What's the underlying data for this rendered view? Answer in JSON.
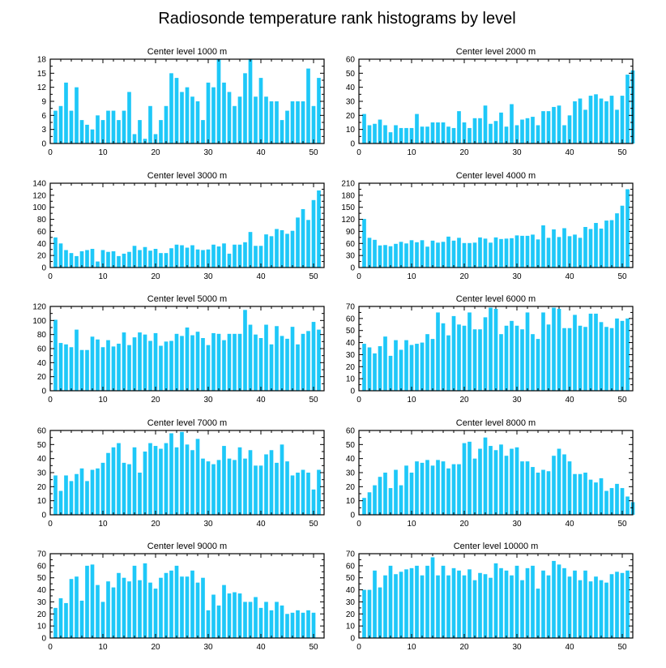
{
  "title": "Radiosonde temperature rank histograms by level",
  "colors": {
    "bar": "#1ec8f8",
    "frame": "#000000"
  },
  "chart_data": [
    {
      "type": "bar",
      "title": "Center level 1000 m",
      "xlim": [
        0,
        52
      ],
      "ylim": [
        0,
        18
      ],
      "xticks": [
        0,
        10,
        20,
        30,
        40,
        50
      ],
      "yticks": [
        0,
        3,
        6,
        9,
        12,
        15,
        18
      ],
      "values": [
        7,
        8,
        13,
        7,
        12,
        5,
        4,
        3,
        6,
        5,
        7,
        7,
        5,
        7,
        11,
        2,
        5,
        1,
        8,
        2,
        5,
        8,
        15,
        14,
        11,
        12,
        10,
        9,
        5,
        13,
        12,
        18,
        13,
        11,
        8,
        10,
        15,
        18,
        10,
        14,
        10,
        9,
        9,
        5,
        7,
        9,
        9,
        9,
        16,
        8,
        14
      ]
    },
    {
      "type": "bar",
      "title": "Center level 2000 m",
      "xlim": [
        0,
        52
      ],
      "ylim": [
        0,
        60
      ],
      "xticks": [
        0,
        10,
        20,
        30,
        40,
        50
      ],
      "yticks": [
        0,
        10,
        20,
        30,
        40,
        50,
        60
      ],
      "values": [
        21,
        13,
        14,
        17,
        13,
        8,
        13,
        11,
        11,
        11,
        21,
        12,
        12,
        15,
        15,
        15,
        12,
        11,
        23,
        15,
        11,
        18,
        18,
        27,
        14,
        16,
        22,
        12,
        28,
        13,
        17,
        18,
        19,
        13,
        23,
        23,
        26,
        27,
        13,
        20,
        30,
        32,
        24,
        34,
        35,
        32,
        30,
        34,
        24,
        34,
        49,
        52
      ]
    },
    {
      "type": "bar",
      "title": "Center level 3000 m",
      "xlim": [
        0,
        52
      ],
      "ylim": [
        0,
        140
      ],
      "xticks": [
        0,
        10,
        20,
        30,
        40,
        50
      ],
      "yticks": [
        0,
        20,
        40,
        60,
        80,
        100,
        120,
        140
      ],
      "values": [
        50,
        40,
        29,
        24,
        19,
        27,
        29,
        31,
        10,
        29,
        26,
        27,
        19,
        23,
        26,
        36,
        29,
        34,
        28,
        31,
        24,
        24,
        32,
        38,
        37,
        33,
        37,
        30,
        29,
        30,
        38,
        35,
        40,
        23,
        38,
        38,
        42,
        59,
        36,
        36,
        55,
        52,
        64,
        62,
        56,
        61,
        83,
        97,
        79,
        112,
        128
      ]
    },
    {
      "type": "bar",
      "title": "Center level 4000 m",
      "xlim": [
        0,
        52
      ],
      "ylim": [
        0,
        210
      ],
      "xticks": [
        0,
        10,
        20,
        30,
        40,
        50
      ],
      "yticks": [
        0,
        30,
        60,
        90,
        120,
        150,
        180,
        210
      ],
      "values": [
        121,
        74,
        69,
        55,
        56,
        53,
        59,
        64,
        60,
        68,
        63,
        68,
        52,
        67,
        62,
        64,
        77,
        67,
        74,
        61,
        61,
        62,
        75,
        72,
        62,
        75,
        71,
        72,
        73,
        80,
        79,
        79,
        82,
        70,
        105,
        74,
        95,
        76,
        98,
        78,
        82,
        74,
        101,
        96,
        111,
        97,
        117,
        118,
        135,
        154,
        195
      ]
    },
    {
      "type": "bar",
      "title": "Center level 5000 m",
      "xlim": [
        0,
        52
      ],
      "ylim": [
        0,
        120
      ],
      "xticks": [
        0,
        10,
        20,
        30,
        40,
        50
      ],
      "yticks": [
        0,
        20,
        40,
        60,
        80,
        100,
        120
      ],
      "values": [
        101,
        68,
        66,
        62,
        87,
        58,
        58,
        77,
        73,
        62,
        72,
        63,
        67,
        83,
        65,
        76,
        83,
        80,
        71,
        82,
        64,
        70,
        71,
        81,
        78,
        90,
        79,
        84,
        75,
        65,
        82,
        81,
        72,
        81,
        81,
        81,
        115,
        94,
        80,
        75,
        94,
        66,
        92,
        78,
        74,
        91,
        66,
        81,
        85,
        98,
        87
      ]
    },
    {
      "type": "bar",
      "title": "Center level 6000 m",
      "xlim": [
        0,
        52
      ],
      "ylim": [
        0,
        70
      ],
      "xticks": [
        0,
        10,
        20,
        30,
        40,
        50
      ],
      "yticks": [
        0,
        10,
        20,
        30,
        40,
        50,
        60,
        70
      ],
      "values": [
        39,
        36,
        31,
        37,
        45,
        29,
        42,
        34,
        42,
        38,
        39,
        40,
        47,
        43,
        65,
        56,
        46,
        62,
        55,
        54,
        65,
        51,
        51,
        61,
        69,
        68,
        47,
        54,
        58,
        54,
        51,
        65,
        47,
        43,
        65,
        55,
        69,
        68,
        52,
        52,
        63,
        54,
        53,
        64,
        64,
        57,
        53,
        52,
        60,
        58,
        60
      ]
    },
    {
      "type": "bar",
      "title": "Center level 7000 m",
      "xlim": [
        0,
        52
      ],
      "ylim": [
        0,
        60
      ],
      "xticks": [
        0,
        10,
        20,
        30,
        40,
        50
      ],
      "yticks": [
        0,
        10,
        20,
        30,
        40,
        50,
        60
      ],
      "values": [
        28,
        17,
        28,
        24,
        29,
        33,
        24,
        32,
        33,
        37,
        44,
        48,
        51,
        37,
        36,
        48,
        30,
        45,
        51,
        49,
        47,
        51,
        58,
        48,
        59,
        50,
        46,
        54,
        40,
        38,
        36,
        39,
        49,
        40,
        39,
        48,
        40,
        46,
        35,
        35,
        43,
        46,
        37,
        50,
        38,
        28,
        30,
        32,
        30,
        18,
        32
      ]
    },
    {
      "type": "bar",
      "title": "Center level 8000 m",
      "xlim": [
        0,
        52
      ],
      "ylim": [
        0,
        60
      ],
      "xticks": [
        0,
        10,
        20,
        30,
        40,
        50
      ],
      "yticks": [
        0,
        10,
        20,
        30,
        40,
        50,
        60
      ],
      "values": [
        12,
        16,
        21,
        27,
        30,
        19,
        32,
        21,
        35,
        30,
        38,
        37,
        39,
        35,
        39,
        38,
        33,
        36,
        36,
        51,
        52,
        40,
        47,
        55,
        49,
        46,
        50,
        42,
        47,
        48,
        38,
        38,
        34,
        30,
        32,
        31,
        42,
        47,
        43,
        38,
        29,
        29,
        30,
        25,
        23,
        26,
        17,
        19,
        22,
        19,
        13,
        9
      ]
    },
    {
      "type": "bar",
      "title": "Center level 9000 m",
      "xlim": [
        0,
        52
      ],
      "ylim": [
        0,
        70
      ],
      "xticks": [
        0,
        10,
        20,
        30,
        40,
        50
      ],
      "yticks": [
        0,
        10,
        20,
        30,
        40,
        50,
        60,
        70
      ],
      "values": [
        25,
        33,
        29,
        49,
        51,
        31,
        60,
        61,
        44,
        30,
        47,
        42,
        54,
        50,
        47,
        60,
        48,
        62,
        46,
        41,
        50,
        54,
        56,
        60,
        51,
        51,
        56,
        46,
        50,
        23,
        36,
        27,
        44,
        37,
        38,
        37,
        30,
        30,
        34,
        25,
        30,
        23,
        30,
        27,
        20,
        21,
        23,
        21,
        23,
        21
      ]
    },
    {
      "type": "bar",
      "title": "Center level 10000 m",
      "xlim": [
        0,
        52
      ],
      "ylim": [
        0,
        70
      ],
      "xticks": [
        0,
        10,
        20,
        30,
        40,
        50
      ],
      "yticks": [
        0,
        10,
        20,
        30,
        40,
        50,
        60,
        70
      ],
      "values": [
        40,
        40,
        56,
        42,
        52,
        60,
        53,
        55,
        57,
        58,
        60,
        52,
        60,
        67,
        52,
        60,
        52,
        58,
        56,
        52,
        57,
        48,
        54,
        53,
        50,
        62,
        58,
        56,
        52,
        60,
        48,
        58,
        60,
        41,
        56,
        52,
        64,
        61,
        58,
        51,
        56,
        48,
        56,
        47,
        51,
        48,
        46,
        53,
        55,
        54,
        56
      ]
    }
  ]
}
